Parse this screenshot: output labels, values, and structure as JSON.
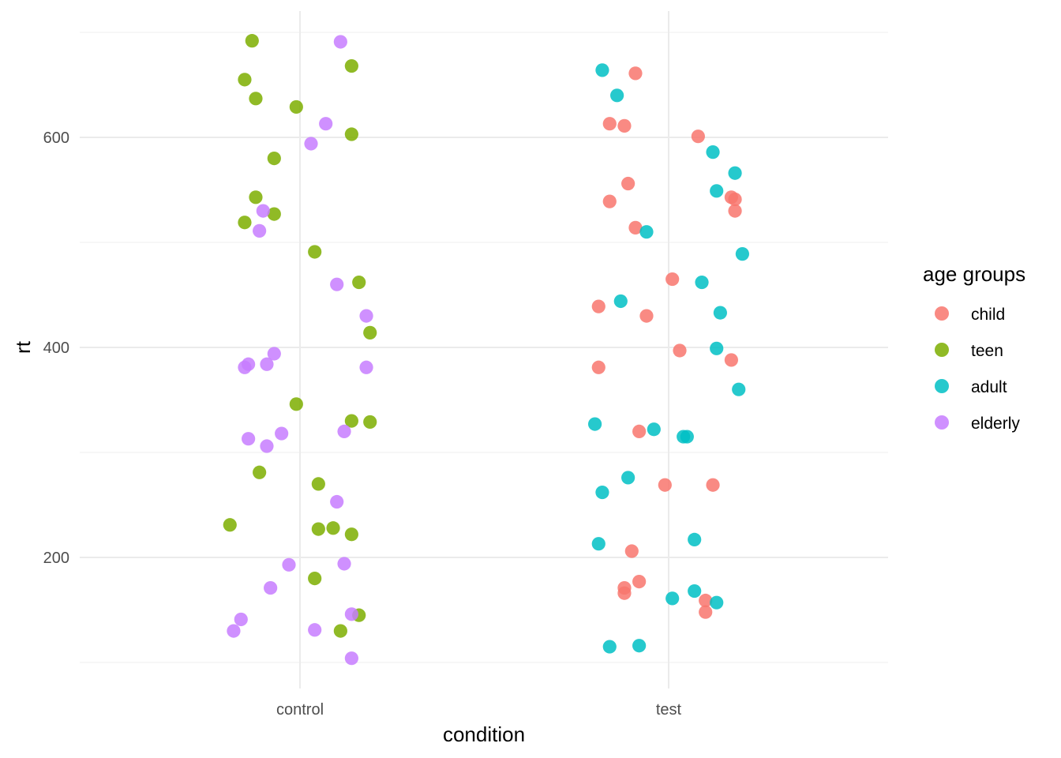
{
  "chart_data": {
    "type": "scatter",
    "title": "",
    "xlabel": "condition",
    "ylabel": "rt",
    "categories": [
      "control",
      "test"
    ],
    "ylim": [
      85,
      705
    ],
    "yticks": [
      200,
      400,
      600
    ],
    "legend": {
      "title": "age groups",
      "position": "right",
      "entries": [
        {
          "name": "child",
          "color": "#F8766D"
        },
        {
          "name": "teen",
          "color": "#7CAE00"
        },
        {
          "name": "adult",
          "color": "#00BFC4"
        },
        {
          "name": "elderly",
          "color": "#C77CFF"
        }
      ]
    },
    "series": [
      {
        "name": "teen",
        "color": "#7CAE00",
        "points": [
          {
            "x": "control",
            "jitter": -0.13,
            "y": 692
          },
          {
            "x": "control",
            "jitter": -0.15,
            "y": 655
          },
          {
            "x": "control",
            "jitter": -0.12,
            "y": 637
          },
          {
            "x": "control",
            "jitter": -0.01,
            "y": 629
          },
          {
            "x": "control",
            "jitter": 0.14,
            "y": 668
          },
          {
            "x": "control",
            "jitter": 0.14,
            "y": 603
          },
          {
            "x": "control",
            "jitter": -0.07,
            "y": 580
          },
          {
            "x": "control",
            "jitter": -0.12,
            "y": 543
          },
          {
            "x": "control",
            "jitter": -0.07,
            "y": 527
          },
          {
            "x": "control",
            "jitter": -0.15,
            "y": 519
          },
          {
            "x": "control",
            "jitter": 0.04,
            "y": 491
          },
          {
            "x": "control",
            "jitter": 0.16,
            "y": 462
          },
          {
            "x": "control",
            "jitter": 0.19,
            "y": 414
          },
          {
            "x": "control",
            "jitter": -0.01,
            "y": 346
          },
          {
            "x": "control",
            "jitter": 0.14,
            "y": 330
          },
          {
            "x": "control",
            "jitter": 0.19,
            "y": 329
          },
          {
            "x": "control",
            "jitter": -0.11,
            "y": 281
          },
          {
            "x": "control",
            "jitter": 0.05,
            "y": 270
          },
          {
            "x": "control",
            "jitter": -0.19,
            "y": 231
          },
          {
            "x": "control",
            "jitter": 0.05,
            "y": 227
          },
          {
            "x": "control",
            "jitter": 0.09,
            "y": 228
          },
          {
            "x": "control",
            "jitter": 0.14,
            "y": 222
          },
          {
            "x": "control",
            "jitter": 0.04,
            "y": 180
          },
          {
            "x": "control",
            "jitter": 0.16,
            "y": 145
          },
          {
            "x": "control",
            "jitter": 0.11,
            "y": 130
          }
        ]
      },
      {
        "name": "elderly",
        "color": "#C77CFF",
        "points": [
          {
            "x": "control",
            "jitter": 0.11,
            "y": 691
          },
          {
            "x": "control",
            "jitter": 0.07,
            "y": 613
          },
          {
            "x": "control",
            "jitter": 0.03,
            "y": 594
          },
          {
            "x": "control",
            "jitter": -0.1,
            "y": 530
          },
          {
            "x": "control",
            "jitter": -0.11,
            "y": 511
          },
          {
            "x": "control",
            "jitter": 0.1,
            "y": 460
          },
          {
            "x": "control",
            "jitter": 0.18,
            "y": 430
          },
          {
            "x": "control",
            "jitter": -0.07,
            "y": 394
          },
          {
            "x": "control",
            "jitter": -0.14,
            "y": 384
          },
          {
            "x": "control",
            "jitter": -0.15,
            "y": 381
          },
          {
            "x": "control",
            "jitter": -0.09,
            "y": 384
          },
          {
            "x": "control",
            "jitter": 0.18,
            "y": 381
          },
          {
            "x": "control",
            "jitter": -0.05,
            "y": 318
          },
          {
            "x": "control",
            "jitter": -0.14,
            "y": 313
          },
          {
            "x": "control",
            "jitter": -0.09,
            "y": 306
          },
          {
            "x": "control",
            "jitter": 0.12,
            "y": 320
          },
          {
            "x": "control",
            "jitter": 0.1,
            "y": 253
          },
          {
            "x": "control",
            "jitter": -0.03,
            "y": 193
          },
          {
            "x": "control",
            "jitter": 0.12,
            "y": 194
          },
          {
            "x": "control",
            "jitter": -0.08,
            "y": 171
          },
          {
            "x": "control",
            "jitter": -0.16,
            "y": 141
          },
          {
            "x": "control",
            "jitter": 0.14,
            "y": 146
          },
          {
            "x": "control",
            "jitter": -0.18,
            "y": 130
          },
          {
            "x": "control",
            "jitter": 0.04,
            "y": 131
          },
          {
            "x": "control",
            "jitter": 0.14,
            "y": 104
          }
        ]
      },
      {
        "name": "child",
        "color": "#F8766D",
        "points": [
          {
            "x": "test",
            "jitter": -0.09,
            "y": 661
          },
          {
            "x": "test",
            "jitter": -0.16,
            "y": 613
          },
          {
            "x": "test",
            "jitter": -0.12,
            "y": 611
          },
          {
            "x": "test",
            "jitter": 0.08,
            "y": 601
          },
          {
            "x": "test",
            "jitter": -0.11,
            "y": 556
          },
          {
            "x": "test",
            "jitter": -0.16,
            "y": 539
          },
          {
            "x": "test",
            "jitter": 0.17,
            "y": 543
          },
          {
            "x": "test",
            "jitter": 0.18,
            "y": 541
          },
          {
            "x": "test",
            "jitter": 0.18,
            "y": 530
          },
          {
            "x": "test",
            "jitter": -0.09,
            "y": 514
          },
          {
            "x": "test",
            "jitter": 0.01,
            "y": 465
          },
          {
            "x": "test",
            "jitter": -0.19,
            "y": 439
          },
          {
            "x": "test",
            "jitter": -0.06,
            "y": 430
          },
          {
            "x": "test",
            "jitter": 0.03,
            "y": 397
          },
          {
            "x": "test",
            "jitter": 0.17,
            "y": 388
          },
          {
            "x": "test",
            "jitter": -0.19,
            "y": 381
          },
          {
            "x": "test",
            "jitter": -0.08,
            "y": 320
          },
          {
            "x": "test",
            "jitter": -0.01,
            "y": 269
          },
          {
            "x": "test",
            "jitter": 0.12,
            "y": 269
          },
          {
            "x": "test",
            "jitter": -0.1,
            "y": 206
          },
          {
            "x": "test",
            "jitter": -0.08,
            "y": 177
          },
          {
            "x": "test",
            "jitter": -0.12,
            "y": 171
          },
          {
            "x": "test",
            "jitter": -0.12,
            "y": 166
          },
          {
            "x": "test",
            "jitter": 0.1,
            "y": 159
          },
          {
            "x": "test",
            "jitter": 0.1,
            "y": 148
          }
        ]
      },
      {
        "name": "adult",
        "color": "#00BFC4",
        "points": [
          {
            "x": "test",
            "jitter": -0.18,
            "y": 664
          },
          {
            "x": "test",
            "jitter": -0.14,
            "y": 640
          },
          {
            "x": "test",
            "jitter": 0.12,
            "y": 586
          },
          {
            "x": "test",
            "jitter": 0.18,
            "y": 566
          },
          {
            "x": "test",
            "jitter": 0.13,
            "y": 549
          },
          {
            "x": "test",
            "jitter": -0.06,
            "y": 510
          },
          {
            "x": "test",
            "jitter": 0.2,
            "y": 489
          },
          {
            "x": "test",
            "jitter": 0.09,
            "y": 462
          },
          {
            "x": "test",
            "jitter": -0.13,
            "y": 444
          },
          {
            "x": "test",
            "jitter": 0.14,
            "y": 433
          },
          {
            "x": "test",
            "jitter": 0.13,
            "y": 399
          },
          {
            "x": "test",
            "jitter": 0.19,
            "y": 360
          },
          {
            "x": "test",
            "jitter": -0.2,
            "y": 327
          },
          {
            "x": "test",
            "jitter": -0.04,
            "y": 322
          },
          {
            "x": "test",
            "jitter": 0.04,
            "y": 315
          },
          {
            "x": "test",
            "jitter": 0.05,
            "y": 315
          },
          {
            "x": "test",
            "jitter": -0.11,
            "y": 276
          },
          {
            "x": "test",
            "jitter": -0.18,
            "y": 262
          },
          {
            "x": "test",
            "jitter": 0.07,
            "y": 217
          },
          {
            "x": "test",
            "jitter": -0.19,
            "y": 213
          },
          {
            "x": "test",
            "jitter": 0.07,
            "y": 168
          },
          {
            "x": "test",
            "jitter": 0.01,
            "y": 161
          },
          {
            "x": "test",
            "jitter": 0.13,
            "y": 157
          },
          {
            "x": "test",
            "jitter": -0.16,
            "y": 115
          },
          {
            "x": "test",
            "jitter": -0.08,
            "y": 116
          }
        ]
      }
    ]
  }
}
